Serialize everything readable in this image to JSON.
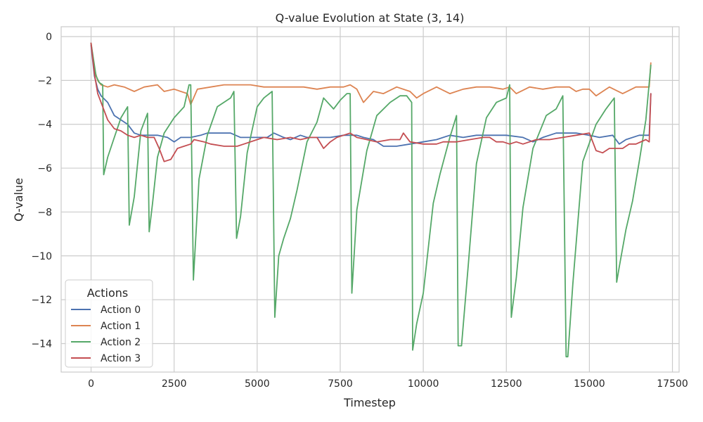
{
  "chart_data": {
    "type": "line",
    "title": "Q-value Evolution at State (3, 14)",
    "xlabel": "Timestep",
    "ylabel": "Q-value",
    "xlim": [
      -900,
      17700
    ],
    "ylim": [
      -15.3,
      0.45
    ],
    "xticks": [
      0,
      2500,
      5000,
      7500,
      10000,
      12500,
      15000,
      17500
    ],
    "xtick_labels": [
      "0",
      "2500",
      "5000",
      "7500",
      "10000",
      "12500",
      "15000",
      "17500"
    ],
    "yticks": [
      0,
      -2,
      -4,
      -6,
      -8,
      -10,
      -12,
      -14
    ],
    "ytick_labels": [
      "0",
      "−2",
      "−4",
      "−6",
      "−8",
      "−10",
      "−12",
      "−14"
    ],
    "grid": true,
    "legend": {
      "title": "Actions",
      "placement": "lower-left"
    },
    "series": [
      {
        "name": "Action 0",
        "color": "#4c72b0",
        "x": [
          0,
          100,
          200,
          300,
          500,
          700,
          900,
          1100,
          1300,
          1500,
          2000,
          2300,
          2500,
          2700,
          3000,
          3300,
          3500,
          4000,
          4200,
          4500,
          5000,
          5300,
          5500,
          5800,
          6000,
          6300,
          6500,
          7000,
          7200,
          7600,
          8000,
          8200,
          8500,
          8800,
          9200,
          9600,
          10000,
          10400,
          10800,
          11200,
          11600,
          12000,
          12500,
          13000,
          13300,
          13600,
          14000,
          14200,
          14600,
          15000,
          15300,
          15700,
          15900,
          16100,
          16500,
          16800,
          16850
        ],
        "values": [
          -0.4,
          -1.8,
          -2.4,
          -2.7,
          -3.0,
          -3.6,
          -3.8,
          -4.0,
          -4.4,
          -4.5,
          -4.5,
          -4.6,
          -4.8,
          -4.6,
          -4.6,
          -4.5,
          -4.4,
          -4.4,
          -4.4,
          -4.6,
          -4.6,
          -4.6,
          -4.4,
          -4.6,
          -4.7,
          -4.5,
          -4.6,
          -4.6,
          -4.6,
          -4.5,
          -4.5,
          -4.6,
          -4.7,
          -5.0,
          -5.0,
          -4.9,
          -4.8,
          -4.7,
          -4.5,
          -4.6,
          -4.5,
          -4.5,
          -4.5,
          -4.6,
          -4.8,
          -4.6,
          -4.4,
          -4.4,
          -4.4,
          -4.5,
          -4.6,
          -4.5,
          -4.9,
          -4.7,
          -4.5,
          -4.5,
          -2.6
        ]
      },
      {
        "name": "Action 1",
        "color": "#dd8452",
        "x": [
          0,
          100,
          200,
          300,
          500,
          700,
          1000,
          1300,
          1600,
          2000,
          2200,
          2500,
          2900,
          3000,
          3200,
          3600,
          4000,
          4400,
          4800,
          5200,
          5600,
          6000,
          6400,
          6800,
          7200,
          7600,
          7800,
          8000,
          8200,
          8500,
          8800,
          9200,
          9600,
          9800,
          10000,
          10400,
          10800,
          11200,
          11600,
          12000,
          12400,
          12600,
          12800,
          13200,
          13600,
          14000,
          14400,
          14600,
          14800,
          15000,
          15200,
          15600,
          16000,
          16400,
          16800,
          16850
        ],
        "values": [
          -0.3,
          -1.5,
          -2.0,
          -2.2,
          -2.3,
          -2.2,
          -2.3,
          -2.5,
          -2.3,
          -2.2,
          -2.5,
          -2.4,
          -2.6,
          -3.1,
          -2.4,
          -2.3,
          -2.2,
          -2.2,
          -2.2,
          -2.3,
          -2.3,
          -2.3,
          -2.3,
          -2.4,
          -2.3,
          -2.3,
          -2.2,
          -2.4,
          -3.0,
          -2.5,
          -2.6,
          -2.3,
          -2.5,
          -2.8,
          -2.6,
          -2.3,
          -2.6,
          -2.4,
          -2.3,
          -2.3,
          -2.4,
          -2.3,
          -2.6,
          -2.3,
          -2.4,
          -2.3,
          -2.3,
          -2.5,
          -2.4,
          -2.4,
          -2.7,
          -2.3,
          -2.6,
          -2.3,
          -2.3,
          -1.2
        ]
      },
      {
        "name": "Action 2",
        "color": "#55a868",
        "x": [
          0,
          150,
          250,
          350,
          380,
          500,
          700,
          900,
          1100,
          1150,
          1300,
          1500,
          1700,
          1750,
          1850,
          2000,
          2200,
          2500,
          2800,
          2950,
          3000,
          3080,
          3250,
          3500,
          3800,
          4200,
          4300,
          4380,
          4500,
          4700,
          5000,
          5200,
          5450,
          5530,
          5650,
          5800,
          6000,
          6200,
          6500,
          6800,
          7000,
          7300,
          7500,
          7700,
          7800,
          7850,
          8000,
          8300,
          8600,
          9000,
          9300,
          9500,
          9650,
          9680,
          9800,
          10000,
          10300,
          10500,
          10800,
          11000,
          11050,
          11150,
          11350,
          11600,
          11900,
          12200,
          12500,
          12600,
          12650,
          12800,
          13000,
          13300,
          13700,
          14000,
          14200,
          14300,
          14350,
          14500,
          14800,
          15200,
          15500,
          15750,
          15820,
          15900,
          16100,
          16300,
          16500,
          16700,
          16850
        ],
        "values": [
          -0.3,
          -1.8,
          -2.1,
          -2.2,
          -6.3,
          -5.5,
          -4.6,
          -3.7,
          -3.2,
          -8.6,
          -7.3,
          -4.3,
          -3.5,
          -8.9,
          -7.6,
          -5.5,
          -4.4,
          -3.7,
          -3.2,
          -2.2,
          -2.2,
          -11.1,
          -6.5,
          -4.5,
          -3.2,
          -2.8,
          -2.5,
          -9.2,
          -8.2,
          -5.3,
          -3.2,
          -2.8,
          -2.5,
          -12.8,
          -10.0,
          -9.2,
          -8.3,
          -7.0,
          -4.8,
          -3.9,
          -2.8,
          -3.3,
          -2.9,
          -2.6,
          -2.6,
          -11.7,
          -7.9,
          -5.2,
          -3.6,
          -3.0,
          -2.7,
          -2.7,
          -3.0,
          -14.3,
          -13.1,
          -11.7,
          -7.6,
          -6.3,
          -4.6,
          -3.6,
          -14.1,
          -14.1,
          -10.5,
          -5.8,
          -3.7,
          -3.0,
          -2.8,
          -2.2,
          -12.8,
          -11.0,
          -7.8,
          -5.1,
          -3.6,
          -3.3,
          -2.7,
          -14.6,
          -14.6,
          -11.3,
          -5.7,
          -4.0,
          -3.3,
          -2.8,
          -11.2,
          -10.5,
          -8.8,
          -7.5,
          -5.7,
          -3.8,
          -1.3
        ]
      },
      {
        "name": "Action 3",
        "color": "#c44e52",
        "x": [
          0,
          100,
          200,
          350,
          500,
          700,
          900,
          1100,
          1300,
          1500,
          1700,
          1900,
          2050,
          2200,
          2400,
          2600,
          2800,
          3000,
          3100,
          3400,
          3600,
          4000,
          4400,
          4600,
          5000,
          5200,
          5600,
          6000,
          6300,
          6600,
          6800,
          7000,
          7200,
          7400,
          7600,
          7800,
          8000,
          8300,
          8600,
          9000,
          9300,
          9400,
          9600,
          10000,
          10400,
          10600,
          11000,
          11400,
          11800,
          12000,
          12200,
          12400,
          12600,
          12800,
          13000,
          13400,
          13800,
          14200,
          14600,
          15000,
          15200,
          15400,
          15600,
          16000,
          16200,
          16400,
          16700,
          16800,
          16850
        ],
        "values": [
          -0.3,
          -1.7,
          -2.6,
          -3.2,
          -3.8,
          -4.2,
          -4.3,
          -4.5,
          -4.6,
          -4.5,
          -4.6,
          -4.6,
          -5.1,
          -5.7,
          -5.6,
          -5.1,
          -5.0,
          -4.9,
          -4.7,
          -4.8,
          -4.9,
          -5.0,
          -5.0,
          -4.9,
          -4.7,
          -4.6,
          -4.7,
          -4.6,
          -4.7,
          -4.6,
          -4.6,
          -5.1,
          -4.8,
          -4.6,
          -4.5,
          -4.4,
          -4.6,
          -4.7,
          -4.8,
          -4.7,
          -4.7,
          -4.4,
          -4.8,
          -4.9,
          -4.9,
          -4.8,
          -4.8,
          -4.7,
          -4.6,
          -4.6,
          -4.8,
          -4.8,
          -4.9,
          -4.8,
          -4.9,
          -4.7,
          -4.7,
          -4.6,
          -4.5,
          -4.4,
          -5.2,
          -5.3,
          -5.1,
          -5.1,
          -4.9,
          -4.9,
          -4.7,
          -4.8,
          -2.6
        ]
      }
    ]
  }
}
